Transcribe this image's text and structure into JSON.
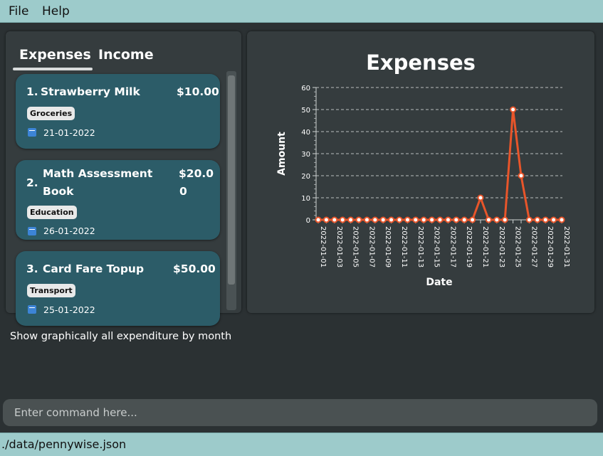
{
  "menubar": {
    "items": [
      "File",
      "Help"
    ]
  },
  "tabs": [
    {
      "label": "Expenses",
      "active": true
    },
    {
      "label": "Income",
      "active": false
    }
  ],
  "expenses": [
    {
      "index": "1.",
      "title": "Strawberry Milk",
      "amount": "$10.00",
      "tag": "Groceries",
      "date": "21-01-2022"
    },
    {
      "index": "2.",
      "title_line1": "Math Assessment",
      "title_line2": "Book",
      "amount_line1": "$20.0",
      "amount_line2": "0",
      "tag": "Education",
      "date": "26-01-2022"
    },
    {
      "index": "3.",
      "title": "Card Fare Topup",
      "amount": "$50.00",
      "tag": "Transport",
      "date": "25-01-2022"
    }
  ],
  "result_display": {
    "text": "Show graphically all expenditure by month"
  },
  "command": {
    "placeholder": "Enter command here..."
  },
  "status": {
    "path": "./data/pennywise.json"
  },
  "icons": {
    "date": "calendar-icon"
  },
  "colors": {
    "menubar": "#9dcbcb",
    "card": "#2c5c68",
    "series": "#e8552a",
    "background": "#2b3133"
  },
  "chart_data": {
    "type": "line",
    "title": "Expenses",
    "xlabel": "Date",
    "ylabel": "Amount",
    "ylim": [
      0,
      60
    ],
    "yticks": [
      0,
      10,
      20,
      30,
      40,
      50,
      60
    ],
    "grid": true,
    "x": [
      "2022-01-01",
      "2022-01-02",
      "2022-01-03",
      "2022-01-04",
      "2022-01-05",
      "2022-01-06",
      "2022-01-07",
      "2022-01-08",
      "2022-01-09",
      "2022-01-10",
      "2022-01-11",
      "2022-01-12",
      "2022-01-13",
      "2022-01-14",
      "2022-01-15",
      "2022-01-16",
      "2022-01-17",
      "2022-01-18",
      "2022-01-19",
      "2022-01-20",
      "2022-01-21",
      "2022-01-22",
      "2022-01-23",
      "2022-01-24",
      "2022-01-25",
      "2022-01-26",
      "2022-01-27",
      "2022-01-28",
      "2022-01-29",
      "2022-01-30",
      "2022-01-31"
    ],
    "xtick_labels": [
      "2022-01-01",
      "2022-01-03",
      "2022-01-05",
      "2022-01-07",
      "2022-01-09",
      "2022-01-11",
      "2022-01-13",
      "2022-01-15",
      "2022-01-17",
      "2022-01-19",
      "2022-01-21",
      "2022-01-23",
      "2022-01-25",
      "2022-01-27",
      "2022-01-29",
      "2022-01-31"
    ],
    "values": [
      0,
      0,
      0,
      0,
      0,
      0,
      0,
      0,
      0,
      0,
      0,
      0,
      0,
      0,
      0,
      0,
      0,
      0,
      0,
      0,
      10,
      0,
      0,
      0,
      50,
      20,
      0,
      0,
      0,
      0,
      0
    ]
  }
}
